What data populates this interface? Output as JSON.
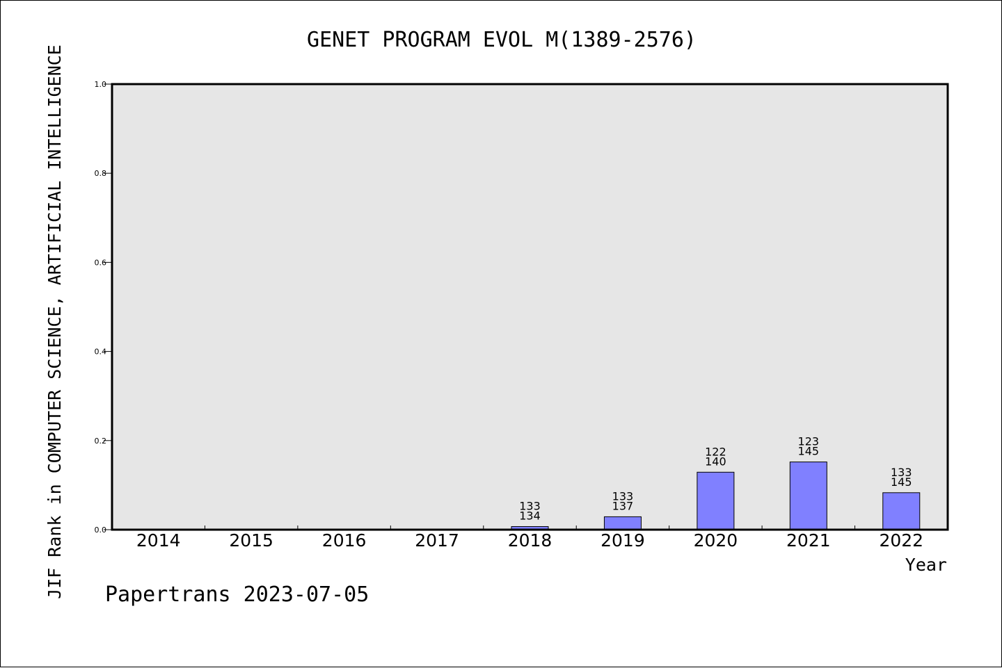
{
  "footer": "Papertrans 2023-07-05",
  "chart_data": {
    "type": "bar",
    "title": "GENET PROGRAM EVOL M(1389-2576)",
    "xlabel": "Year",
    "ylabel": "JIF Rank in COMPUTER SCIENCE, ARTIFICIAL INTELLIGENCE",
    "ylim": [
      0,
      1.0
    ],
    "yticks": [
      "0.0",
      "0.2",
      "0.4",
      "0.6",
      "0.8",
      "1.0"
    ],
    "grid": false,
    "categories": [
      "2014",
      "2015",
      "2016",
      "2017",
      "2018",
      "2019",
      "2020",
      "2021",
      "2022"
    ],
    "values": [
      null,
      null,
      null,
      null,
      0.007,
      0.029,
      0.129,
      0.152,
      0.083
    ],
    "labels": [
      null,
      null,
      null,
      null,
      [
        "133",
        "134"
      ],
      [
        "133",
        "137"
      ],
      [
        "122",
        "140"
      ],
      [
        "123",
        "145"
      ],
      [
        "133",
        "145"
      ]
    ],
    "colors": {
      "bar": "#8080ff",
      "plot_bg": "#e6e6e6",
      "page_bg": "#ffffff"
    }
  }
}
